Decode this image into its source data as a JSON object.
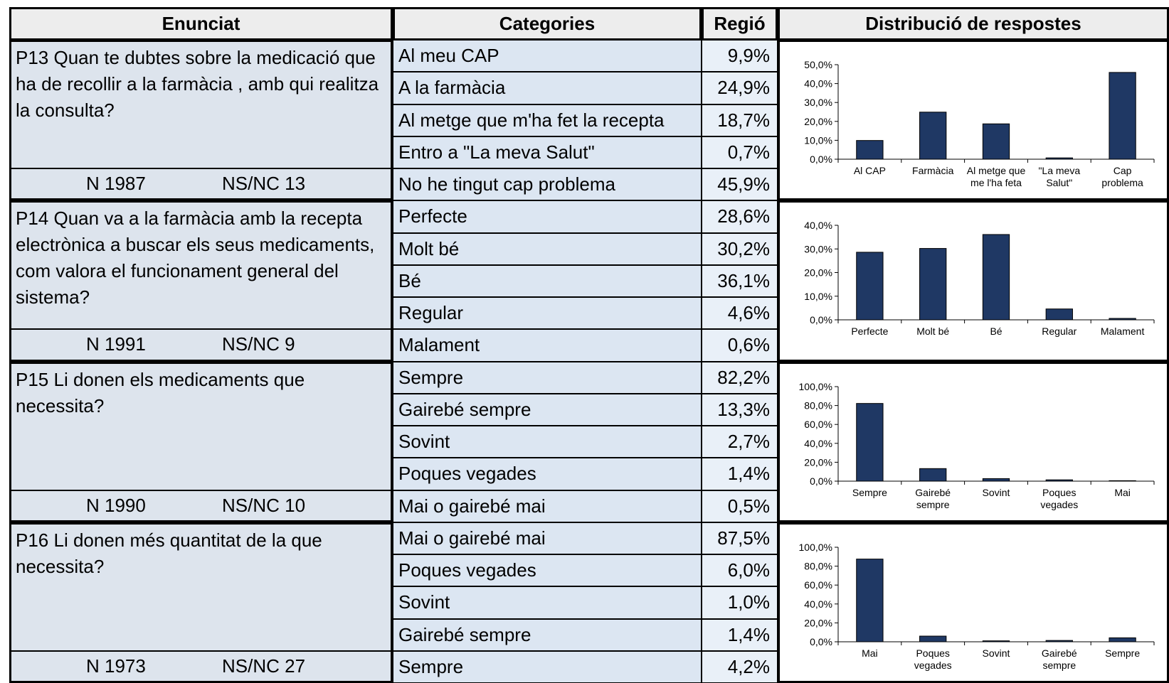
{
  "header": [
    "Enunciat",
    "Categories",
    "Regió",
    "Distribució de respostes"
  ],
  "questions": [
    {
      "text": "P13 Quan te dubtes sobre la medicació que ha de recollir a la farmàcia , amb qui realitza la consulta?",
      "n": "N 1987",
      "nsnc": "NS/NC 13",
      "rows": [
        [
          "Al meu CAP",
          "9,9%"
        ],
        [
          "A la farmàcia",
          "24,9%"
        ],
        [
          "Al metge que m'ha fet la recepta",
          "18,7%"
        ],
        [
          "Entro a \"La meva Salut\"",
          "0,7%"
        ],
        [
          "No he tingut cap problema",
          "45,9%"
        ]
      ],
      "chart": {
        "type": "bar",
        "color": "#1f3864",
        "categories": [
          [
            "Al CAP"
          ],
          [
            "Farmàcia"
          ],
          [
            "Al metge que",
            "me l'ha feta"
          ],
          [
            "\"La meva",
            "Salut\""
          ],
          [
            "Cap",
            "problema"
          ]
        ],
        "values": [
          9.9,
          24.9,
          18.7,
          0.7,
          45.9
        ],
        "ylim": [
          0,
          50
        ],
        "yticks": [
          {
            "value": 0,
            "label": "0,0%"
          },
          {
            "value": 10,
            "label": "10,0%"
          },
          {
            "value": 20,
            "label": "20,0%"
          },
          {
            "value": 30,
            "label": "30,0%"
          },
          {
            "value": 40,
            "label": "40,0%"
          },
          {
            "value": 50,
            "label": "50,0%"
          }
        ]
      }
    },
    {
      "text": "P14 Quan va a la farmàcia amb la recepta electrònica a buscar els seus medicaments, com valora el funcionament general del sistema?",
      "n": "N 1991",
      "nsnc": "NS/NC 9",
      "rows": [
        [
          "Perfecte",
          "28,6%"
        ],
        [
          "Molt bé",
          "30,2%"
        ],
        [
          "Bé",
          "36,1%"
        ],
        [
          "Regular",
          "4,6%"
        ],
        [
          "Malament",
          "0,6%"
        ]
      ],
      "chart": {
        "type": "bar",
        "color": "#1f3864",
        "categories": [
          [
            "Perfecte"
          ],
          [
            "Molt bé"
          ],
          [
            "Bé"
          ],
          [
            "Regular"
          ],
          [
            "Malament"
          ]
        ],
        "values": [
          28.6,
          30.2,
          36.1,
          4.6,
          0.6
        ],
        "ylim": [
          0,
          40
        ],
        "yticks": [
          {
            "value": 0,
            "label": "0,0%"
          },
          {
            "value": 10,
            "label": "10,0%"
          },
          {
            "value": 20,
            "label": "20,0%"
          },
          {
            "value": 30,
            "label": "30,0%"
          },
          {
            "value": 40,
            "label": "40,0%"
          }
        ]
      }
    },
    {
      "text": "P15 Li donen els medicaments que necessita?",
      "n": "N 1990",
      "nsnc": "NS/NC 10",
      "rows": [
        [
          "Sempre",
          "82,2%"
        ],
        [
          "Gairebé sempre",
          "13,3%"
        ],
        [
          "Sovint",
          "2,7%"
        ],
        [
          "Poques vegades",
          "1,4%"
        ],
        [
          "Mai o gairebé mai",
          "0,5%"
        ]
      ],
      "chart": {
        "type": "bar",
        "color": "#1f3864",
        "categories": [
          [
            "Sempre"
          ],
          [
            "Gairebé",
            "sempre"
          ],
          [
            "Sovint"
          ],
          [
            "Poques",
            "vegades"
          ],
          [
            "Mai"
          ]
        ],
        "values": [
          82.2,
          13.3,
          2.7,
          1.4,
          0.5
        ],
        "ylim": [
          0,
          100
        ],
        "yticks": [
          {
            "value": 0,
            "label": "0,0%"
          },
          {
            "value": 20,
            "label": "20,0%"
          },
          {
            "value": 40,
            "label": "40,0%"
          },
          {
            "value": 60,
            "label": "60,0%"
          },
          {
            "value": 80,
            "label": "80,0%"
          },
          {
            "value": 100,
            "label": "100,0%"
          }
        ]
      }
    },
    {
      "text": "P16 Li donen més quantitat de la que necessita?",
      "n": "N 1973",
      "nsnc": "NS/NC 27",
      "rows": [
        [
          "Mai o gairebé mai",
          "87,5%"
        ],
        [
          "Poques vegades",
          "6,0%"
        ],
        [
          "Sovint",
          "1,0%"
        ],
        [
          "Gairebé sempre",
          "1,4%"
        ],
        [
          "Sempre",
          "4,2%"
        ]
      ],
      "chart": {
        "type": "bar",
        "color": "#1f3864",
        "categories": [
          [
            "Mai"
          ],
          [
            "Poques",
            "vegades"
          ],
          [
            "Sovint"
          ],
          [
            "Gairebé",
            "sempre"
          ],
          [
            "Sempre"
          ]
        ],
        "values": [
          87.5,
          6.0,
          1.0,
          1.4,
          4.2
        ],
        "ylim": [
          0,
          100
        ],
        "yticks": [
          {
            "value": 0,
            "label": "0,0%"
          },
          {
            "value": 20,
            "label": "20,0%"
          },
          {
            "value": 40,
            "label": "40,0%"
          },
          {
            "value": 60,
            "label": "60,0%"
          },
          {
            "value": 80,
            "label": "80,0%"
          },
          {
            "value": 100,
            "label": "100,0%"
          }
        ]
      }
    }
  ]
}
